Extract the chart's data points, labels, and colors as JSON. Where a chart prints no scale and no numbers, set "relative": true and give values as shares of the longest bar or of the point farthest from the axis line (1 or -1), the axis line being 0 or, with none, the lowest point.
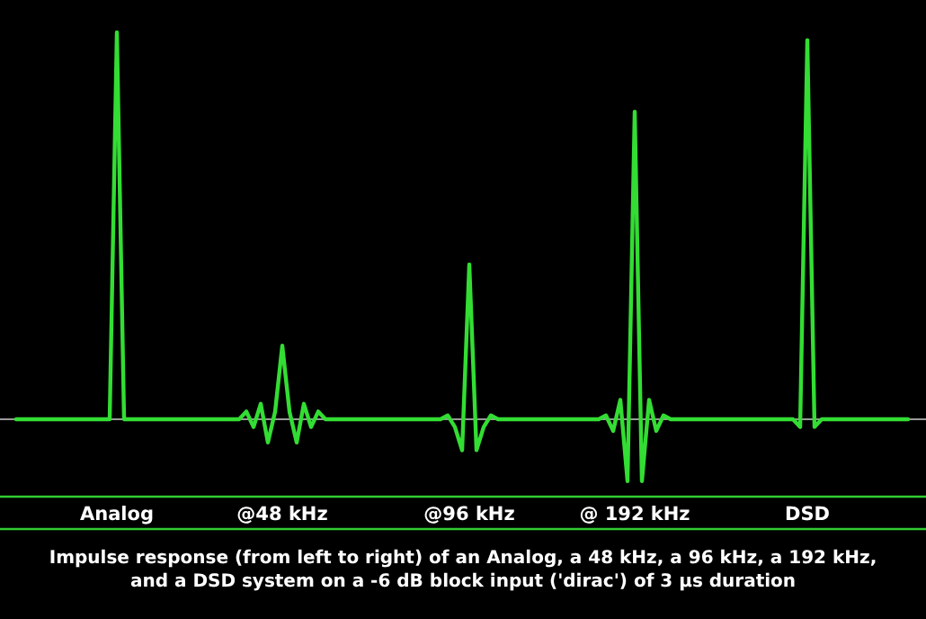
{
  "chart_data": {
    "type": "line",
    "relative": true,
    "categories": [
      null,
      null,
      null,
      null,
      null,
      null,
      null,
      null,
      null,
      null,
      null,
      null,
      null,
      null,
      "Analog",
      null,
      null,
      null,
      null,
      null,
      null,
      null,
      null,
      null,
      null,
      null,
      null,
      null,
      null,
      null,
      null,
      null,
      null,
      null,
      null,
      null,
      null,
      "@48 kHz",
      null,
      null,
      null,
      null,
      null,
      null,
      null,
      null,
      null,
      null,
      null,
      null,
      null,
      null,
      null,
      null,
      null,
      null,
      null,
      null,
      null,
      null,
      null,
      null,
      null,
      "@96 kHz",
      null,
      null,
      null,
      null,
      null,
      null,
      null,
      null,
      null,
      null,
      null,
      null,
      null,
      null,
      null,
      null,
      null,
      null,
      null,
      null,
      null,
      null,
      "@ 192 kHz",
      null,
      null,
      null,
      null,
      null,
      null,
      null,
      null,
      null,
      null,
      null,
      null,
      null,
      null,
      null,
      null,
      null,
      null,
      null,
      null,
      null,
      null,
      null,
      "DSD",
      null,
      null,
      null,
      null,
      null,
      null,
      null,
      null,
      null,
      null,
      null,
      null,
      null,
      null
    ],
    "series": [
      {
        "color": "#33dd33",
        "values": [
          0,
          0,
          0,
          0,
          0,
          0,
          0,
          0,
          0,
          0,
          0,
          0,
          0,
          0,
          1,
          0,
          0,
          0,
          0,
          0,
          0,
          0,
          0,
          0,
          0,
          0,
          0,
          0,
          0,
          0,
          0,
          0,
          0.02,
          -0.02,
          0.04,
          -0.06,
          0.02,
          0.19,
          0.02,
          -0.06,
          0.04,
          -0.02,
          0.02,
          0,
          0,
          0,
          0,
          0,
          0,
          0,
          0,
          0,
          0,
          0,
          0,
          0,
          0,
          0,
          0,
          0,
          0.01,
          -0.02,
          -0.08,
          0.4,
          -0.08,
          -0.02,
          0.01,
          0,
          0,
          0,
          0,
          0,
          0,
          0,
          0,
          0,
          0,
          0,
          0,
          0,
          0,
          0,
          0.01,
          -0.03,
          0.05,
          -0.16,
          0.795,
          -0.16,
          0.05,
          -0.03,
          0.01,
          0,
          0,
          0,
          0,
          0,
          0,
          0,
          0,
          0,
          0,
          0,
          0,
          0,
          0,
          0,
          0,
          0,
          0,
          -0.02,
          0.98,
          -0.02,
          0,
          0,
          0,
          0,
          0,
          0,
          0,
          0,
          0,
          0,
          0,
          0,
          0
        ]
      }
    ],
    "marker": "none",
    "line_style": "solid",
    "annotations": [
      "Impulse response (from left to right) of an Analog, a 48 kHz, a 96 kHz, a 192 kHz, and a DSD system on a -6 dB block input ('dirac') of 3 µs duration"
    ]
  }
}
